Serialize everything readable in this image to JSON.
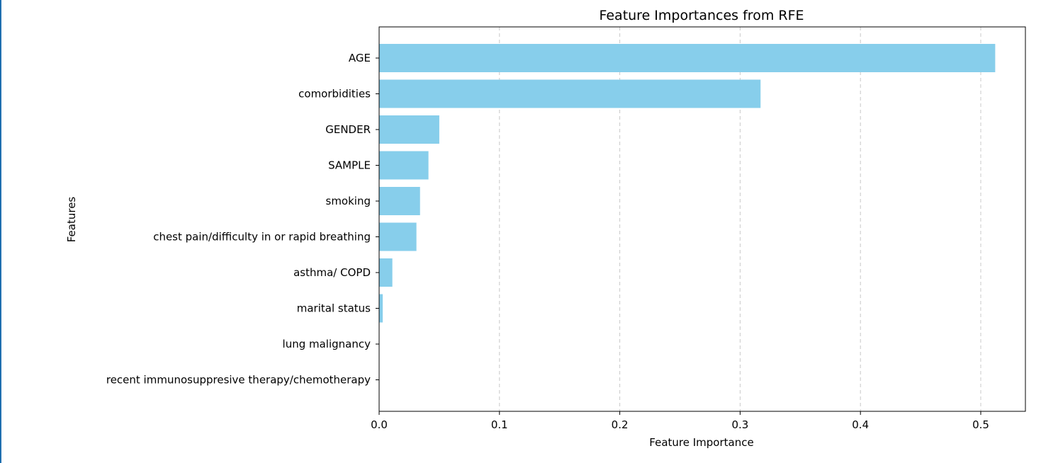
{
  "chart_data": {
    "type": "bar",
    "orientation": "horizontal",
    "title": "Feature Importances from RFE",
    "xlabel": "Feature Importance",
    "ylabel": "Features",
    "categories": [
      "AGE",
      "comorbidities",
      "GENDER",
      "SAMPLE",
      "smoking ",
      "chest pain/difficulty in or rapid breathing",
      "asthma/ COPD",
      "marital status",
      "lung malignancy",
      "recent immunosuppresive therapy/chemotherapy"
    ],
    "values": [
      0.512,
      0.317,
      0.05,
      0.041,
      0.034,
      0.031,
      0.011,
      0.003,
      0.0,
      0.0
    ],
    "xlim": [
      0.0,
      0.538
    ],
    "xticks": [
      0.0,
      0.1,
      0.2,
      0.3,
      0.4,
      0.5
    ],
    "xtick_labels": [
      "0.0",
      "0.1",
      "0.2",
      "0.3",
      "0.4",
      "0.5"
    ],
    "grid": "x-dashed",
    "bar_color": "#87ceeb",
    "grid_color": "#c8c8c8"
  }
}
